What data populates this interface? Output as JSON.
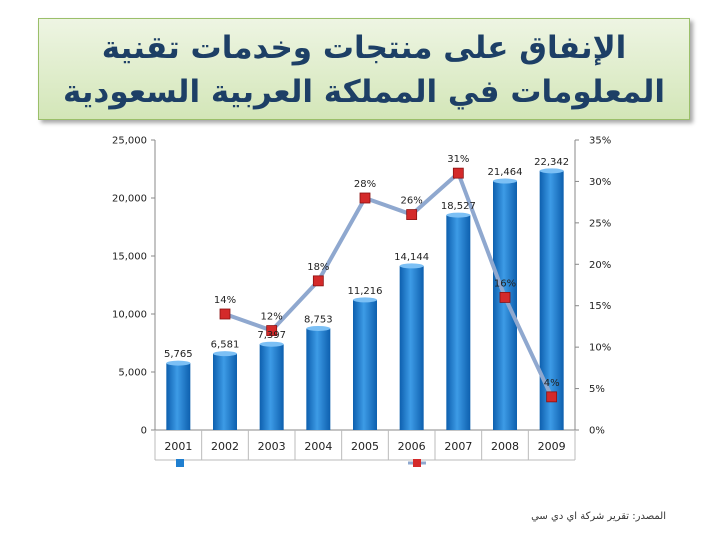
{
  "title": {
    "line1": "الإنفاق على منتجات وخدمات تقنية",
    "line2": "المعلومات في المملكة العربية السعودية"
  },
  "source": "المصدر: تقرير شركة اي دي سي",
  "chart_data": {
    "type": "bar+line",
    "categories": [
      "2001",
      "2002",
      "2003",
      "2004",
      "2005",
      "2006",
      "2007",
      "2008",
      "2009"
    ],
    "series": [
      {
        "type": "bar",
        "axis": "left",
        "values": [
          5765,
          6581,
          7397,
          8753,
          11216,
          14144,
          18527,
          21464,
          22342
        ],
        "labels": [
          "5,765",
          "6,581",
          "7,397",
          "8,753",
          "11,216",
          "14,144",
          "18,527",
          "21,464",
          "22,342"
        ],
        "color": "#1f7fd0"
      },
      {
        "type": "line",
        "axis": "right",
        "values": [
          null,
          14,
          12,
          18,
          28,
          26,
          31,
          16,
          4
        ],
        "labels": [
          "",
          "14%",
          "12%",
          "18%",
          "28%",
          "26%",
          "31%",
          "16%",
          "4%"
        ],
        "color": "#8fa8cf",
        "marker_color": "#d42a2a"
      }
    ],
    "y_left": {
      "min": 0,
      "max": 25000,
      "ticks": [
        "0",
        "5,000",
        "10,000",
        "15,000",
        "20,000",
        "25,000"
      ]
    },
    "y_right": {
      "min": 0,
      "max": 35,
      "ticks": [
        "0%",
        "5%",
        "10%",
        "15%",
        "20%",
        "25%",
        "30%",
        "35%"
      ]
    },
    "grid": false,
    "legend_position": "bottom"
  }
}
